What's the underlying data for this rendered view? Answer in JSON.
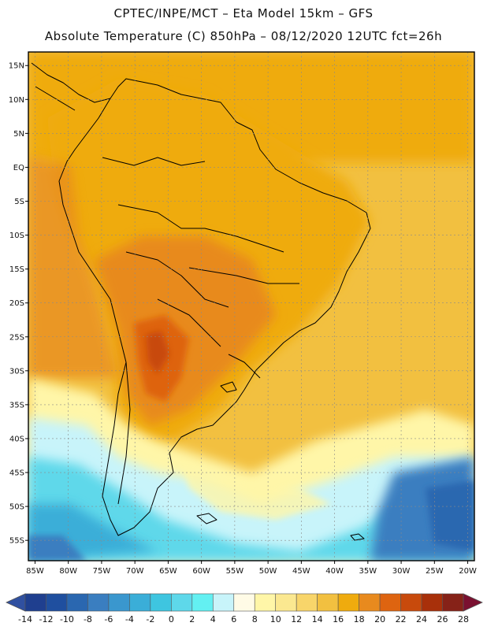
{
  "header": {
    "line1": "CPTEC/INPE/MCT –  Eta Model 15km – GFS",
    "line2": "Absolute Temperature (C) 850hPa – 08/12/2020 12UTC fct=26h"
  },
  "map": {
    "lat_ticks": [
      {
        "label": "15N",
        "lat": 15
      },
      {
        "label": "10N",
        "lat": 10
      },
      {
        "label": "5N",
        "lat": 5
      },
      {
        "label": "EQ",
        "lat": 0
      },
      {
        "label": "5S",
        "lat": -5
      },
      {
        "label": "10S",
        "lat": -10
      },
      {
        "label": "15S",
        "lat": -15
      },
      {
        "label": "20S",
        "lat": -20
      },
      {
        "label": "25S",
        "lat": -25
      },
      {
        "label": "30S",
        "lat": -30
      },
      {
        "label": "35S",
        "lat": -35
      },
      {
        "label": "40S",
        "lat": -40
      },
      {
        "label": "45S",
        "lat": -45
      },
      {
        "label": "50S",
        "lat": -50
      },
      {
        "label": "55S",
        "lat": -55
      }
    ],
    "lon_ticks": [
      {
        "label": "85W",
        "lon": -85
      },
      {
        "label": "80W",
        "lon": -80
      },
      {
        "label": "75W",
        "lon": -75
      },
      {
        "label": "70W",
        "lon": -70
      },
      {
        "label": "65W",
        "lon": -65
      },
      {
        "label": "60W",
        "lon": -60
      },
      {
        "label": "55W",
        "lon": -55
      },
      {
        "label": "50W",
        "lon": -50
      },
      {
        "label": "45W",
        "lon": -45
      },
      {
        "label": "40W",
        "lon": -40
      },
      {
        "label": "35W",
        "lon": -35
      },
      {
        "label": "30W",
        "lon": -30
      },
      {
        "label": "25W",
        "lon": -25
      },
      {
        "label": "20W",
        "lon": -20
      }
    ],
    "lon_range": [
      -86,
      -19
    ],
    "lat_range": [
      -58,
      17
    ]
  },
  "colorbar": {
    "ticks": [
      "-14",
      "-12",
      "-10",
      "-8",
      "-6",
      "-4",
      "-2",
      "0",
      "2",
      "4",
      "6",
      "8",
      "10",
      "12",
      "14",
      "16",
      "18",
      "20",
      "22",
      "24",
      "26",
      "28"
    ],
    "colors": [
      "#1f3f8f",
      "#1f4f9f",
      "#2a67b0",
      "#3a7ec0",
      "#3a97ce",
      "#3aaed8",
      "#3ec5e0",
      "#5ed8ea",
      "#63f0f2",
      "#c8f4fa",
      "#fffbe6",
      "#fff6a8",
      "#fbe890",
      "#f8d56a",
      "#f2c040",
      "#efab0e",
      "#e88a1e",
      "#de6410",
      "#c84a0c",
      "#a8300a",
      "#862218"
    ],
    "under_color": "#3050a0",
    "over_color": "#7a1030"
  }
}
